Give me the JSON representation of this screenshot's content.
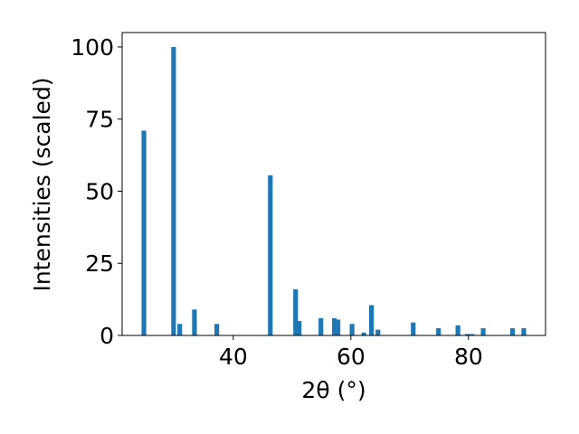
{
  "chart_data": {
    "type": "bar",
    "x": [
      24.8,
      29.85,
      30.9,
      33.4,
      37.2,
      46.3,
      50.6,
      51.2,
      54.9,
      57.2,
      57.8,
      60.2,
      62.2,
      63.5,
      64.6,
      70.6,
      74.9,
      78.2,
      79.8,
      80.6,
      82.5,
      87.5,
      89.4
    ],
    "values": [
      71,
      100,
      4,
      9,
      4,
      55.5,
      16,
      5,
      6,
      6,
      5.5,
      4,
      1,
      10.5,
      2,
      4.5,
      2.5,
      3.5,
      0.5,
      0.5,
      2.5,
      2.5,
      2.5
    ],
    "color": "#1f77b4",
    "xlabel": "2θ (°)",
    "ylabel": "Intensities (scaled)",
    "xlim": [
      21.1,
      93.1
    ],
    "xticks": [
      40,
      60,
      80
    ],
    "ylim": [
      0,
      105
    ],
    "yticks": [
      0,
      25,
      50,
      75,
      100
    ]
  }
}
